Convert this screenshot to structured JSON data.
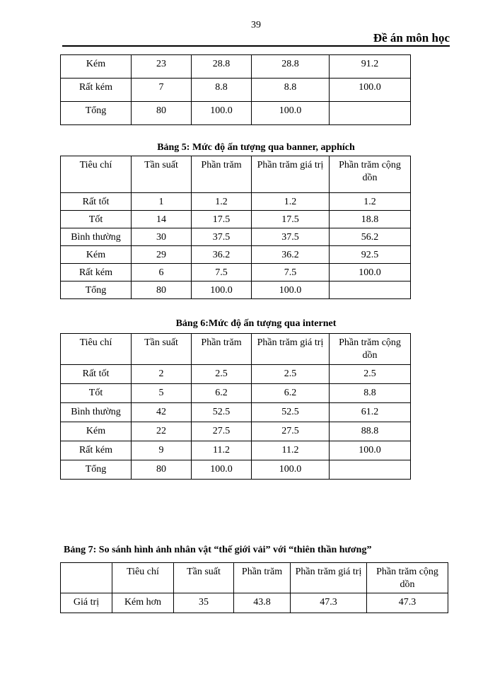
{
  "page_number": "39",
  "header_title": "Đề án môn học",
  "table_cont": {
    "rows": [
      [
        "Kém",
        "23",
        "28.8",
        "28.8",
        "91.2"
      ],
      [
        "Rất kém",
        "7",
        "8.8",
        "8.8",
        "100.0"
      ],
      [
        "Tổng",
        "80",
        "100.0",
        "100.0",
        ""
      ]
    ]
  },
  "table5": {
    "caption": "Bảng 5: Mức độ ấn tượng qua banner, apphích",
    "header": [
      "Tiêu chí",
      "Tần suất",
      "Phần trăm",
      "Phần trăm giá trị",
      "Phần trăm cộng dồn"
    ],
    "rows": [
      [
        "Rất tốt",
        "1",
        "1.2",
        "1.2",
        "1.2"
      ],
      [
        "Tốt",
        "14",
        "17.5",
        "17.5",
        "18.8"
      ],
      [
        "Bình thường",
        "30",
        "37.5",
        "37.5",
        "56.2"
      ],
      [
        "Kém",
        "29",
        "36.2",
        "36.2",
        "92.5"
      ],
      [
        "Rất kém",
        "6",
        "7.5",
        "7.5",
        "100.0"
      ],
      [
        "Tổng",
        "80",
        "100.0",
        "100.0",
        ""
      ]
    ]
  },
  "table6": {
    "caption": "Bảng 6:Mức độ ấn tượng qua internet",
    "header": [
      "Tiêu chí",
      "Tần suất",
      "Phần trăm",
      "Phần trăm giá trị",
      "Phần trăm cộng dồn"
    ],
    "rows": [
      [
        "Rất tốt",
        "2",
        "2.5",
        "2.5",
        "2.5"
      ],
      [
        "Tốt",
        "5",
        "6.2",
        "6.2",
        "8.8"
      ],
      [
        "Bình thường",
        "42",
        "52.5",
        "52.5",
        "61.2"
      ],
      [
        "Kém",
        "22",
        "27.5",
        "27.5",
        "88.8"
      ],
      [
        "Rất kém",
        "9",
        "11.2",
        "11.2",
        "100.0"
      ],
      [
        "Tổng",
        "80",
        "100.0",
        "100.0",
        ""
      ]
    ]
  },
  "table7": {
    "caption": "Bảng 7: So sánh hình ảnh nhân vật “thế giới vải” với “thiên thần hương”",
    "header": [
      "",
      "Tiêu chí",
      "Tần  suất",
      "Phần trăm",
      "Phần trăm giá trị",
      "Phần trăm cộng dồn"
    ],
    "rows": [
      [
        "Giá trị",
        "Kém hơn",
        "35",
        "43.8",
        "47.3",
        "47.3"
      ]
    ]
  }
}
